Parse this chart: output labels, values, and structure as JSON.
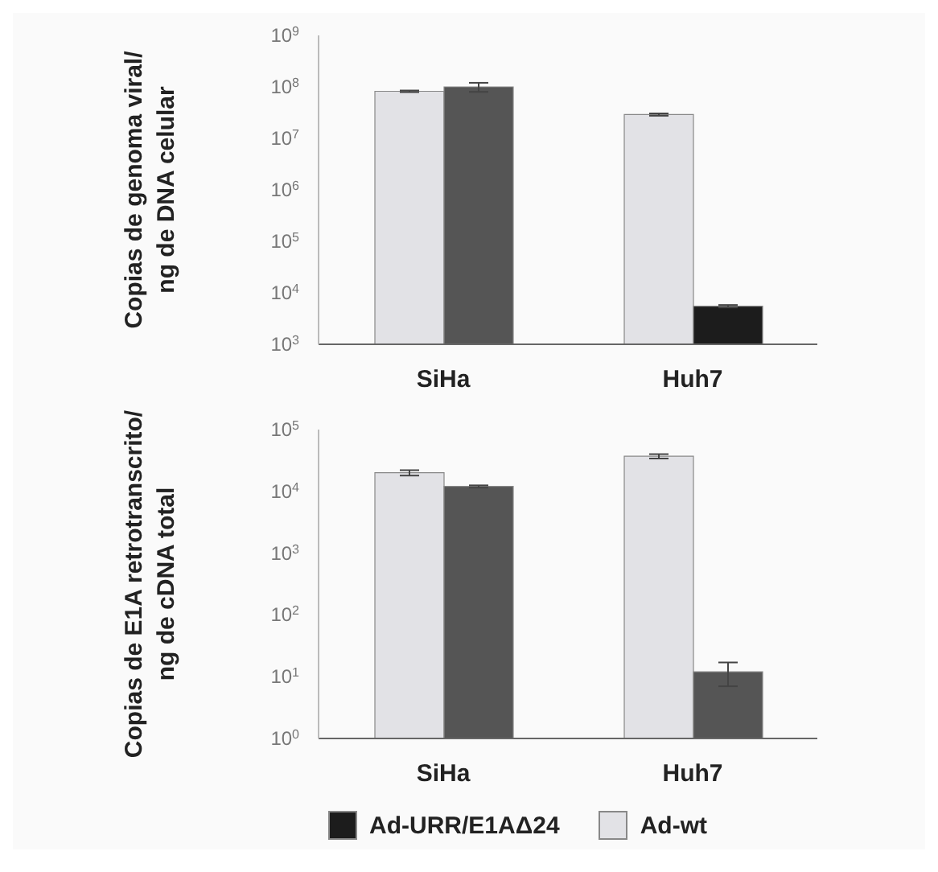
{
  "chart_data": [
    {
      "type": "bar",
      "ylabel": "Copias de genoma viral/\nng de DNA celular",
      "categories": [
        "SiHa",
        "Huh7"
      ],
      "log": true,
      "ylim": [
        1000,
        1000000000
      ],
      "yticks": [
        {
          "value": 1000,
          "label": "10$^{3}$"
        },
        {
          "value": 10000,
          "label": "10$^{4}$"
        },
        {
          "value": 100000,
          "label": "10$^{5}$"
        },
        {
          "value": 1000000,
          "label": "10$^{6}$"
        },
        {
          "value": 10000000,
          "label": "10$^{7}$"
        },
        {
          "value": 100000000,
          "label": "10$^{8}$"
        },
        {
          "value": 1000000000,
          "label": "10$^{9}$"
        }
      ],
      "legend": "bottom",
      "series": [
        {
          "name": "Ad-wt",
          "color": "#e2e2e6",
          "values": [
            82000000,
            29000000
          ],
          "errors": [
            3000000,
            1500000
          ]
        },
        {
          "name": "Ad-URR/E1AΔ24",
          "color": "#1c1c1c",
          "colors": [
            "#555555",
            "#1c1c1c"
          ],
          "values": [
            100000000,
            5500
          ],
          "errors": [
            20000000,
            300
          ]
        }
      ]
    },
    {
      "type": "bar",
      "ylabel": "Copias de E1A retrotranscrito/\nng de cDNA total",
      "categories": [
        "SiHa",
        "Huh7"
      ],
      "log": true,
      "ylim": [
        1,
        100000
      ],
      "yticks": [
        {
          "value": 1,
          "label": "10$^{0}$"
        },
        {
          "value": 10,
          "label": "10$^{1}$"
        },
        {
          "value": 100,
          "label": "10$^{2}$"
        },
        {
          "value": 1000,
          "label": "10$^{3}$"
        },
        {
          "value": 10000,
          "label": "10$^{4}$"
        },
        {
          "value": 100000,
          "label": "10$^{5}$"
        }
      ],
      "series": [
        {
          "color": "#e2e2e6",
          "values": [
            20000,
            37000
          ],
          "errors": [
            2000,
            3000
          ]
        },
        {
          "color": "#555555",
          "values": [
            12000,
            12
          ],
          "errors": [
            500,
            5
          ]
        }
      ]
    }
  ]
}
